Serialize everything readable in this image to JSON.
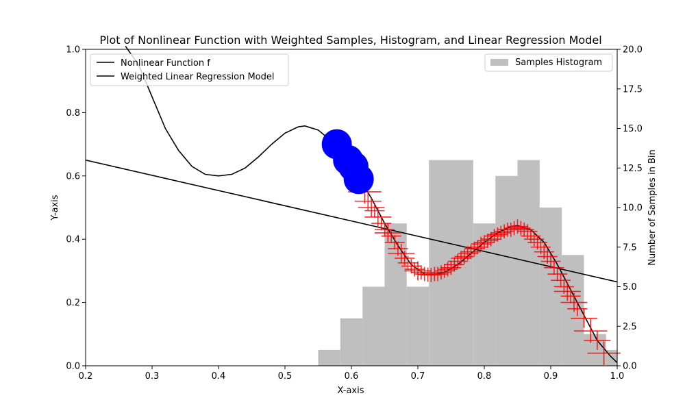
{
  "chart_data": {
    "type": "line",
    "title": "Plot of Nonlinear Function with Weighted Samples, Histogram, and Linear Regression Model",
    "xlabel": "X-axis",
    "ylabel": "Y-axis",
    "y2label": "Number of Samples in Bin",
    "xlim": [
      0.2,
      1.0
    ],
    "ylim": [
      0.0,
      1.0
    ],
    "y2lim": [
      0.0,
      20.0
    ],
    "x_ticks": [
      "0.2",
      "0.3",
      "0.4",
      "0.5",
      "0.6",
      "0.7",
      "0.8",
      "0.9",
      "1.0"
    ],
    "y_ticks": [
      "0.0",
      "0.2",
      "0.4",
      "0.6",
      "0.8",
      "1.0"
    ],
    "y2_ticks": [
      "0.0",
      "2.5",
      "5.0",
      "7.5",
      "10.0",
      "12.5",
      "15.0",
      "17.5",
      "20.0"
    ],
    "grid": false,
    "legend_left": {
      "placement": "top-left",
      "entries": [
        "Nonlinear Function f",
        "Weighted Linear Regression Model"
      ]
    },
    "legend_right": {
      "placement": "top-right",
      "entries": [
        "Samples Histogram"
      ]
    },
    "colors": {
      "function": "#000000",
      "regression": "#000000",
      "histogram": "#bfbfbf",
      "samples": "#ff0000",
      "highlight": "#0000ff"
    },
    "nonlinear_function": {
      "name": "Nonlinear Function f",
      "x": [
        0.26,
        0.28,
        0.3,
        0.32,
        0.34,
        0.36,
        0.38,
        0.4,
        0.42,
        0.44,
        0.46,
        0.48,
        0.5,
        0.52,
        0.53,
        0.55,
        0.57,
        0.59,
        0.61,
        0.63,
        0.65,
        0.67,
        0.69,
        0.71,
        0.72,
        0.74,
        0.76,
        0.78,
        0.8,
        0.82,
        0.84,
        0.85,
        0.87,
        0.89,
        0.91,
        0.93,
        0.95,
        0.97,
        0.99,
        1.0
      ],
      "y": [
        1.01,
        0.95,
        0.85,
        0.75,
        0.68,
        0.63,
        0.605,
        0.6,
        0.605,
        0.625,
        0.66,
        0.7,
        0.735,
        0.755,
        0.758,
        0.745,
        0.71,
        0.66,
        0.6,
        0.53,
        0.45,
        0.38,
        0.32,
        0.29,
        0.287,
        0.295,
        0.32,
        0.355,
        0.39,
        0.42,
        0.44,
        0.443,
        0.43,
        0.39,
        0.32,
        0.24,
        0.16,
        0.08,
        0.03,
        0.01
      ]
    },
    "regression_line": {
      "name": "Weighted Linear Regression Model",
      "x": [
        0.2,
        1.0
      ],
      "y": [
        0.65,
        0.265
      ]
    },
    "histogram": {
      "name": "Samples Histogram",
      "bin_edges": [
        0.55,
        0.5833,
        0.6167,
        0.65,
        0.6833,
        0.7167,
        0.75,
        0.7833,
        0.8167,
        0.85,
        0.8833,
        0.9167,
        0.95,
        0.9833,
        1.0
      ],
      "counts": [
        1,
        3,
        5,
        9,
        5,
        13,
        13,
        9,
        12,
        13,
        10,
        7,
        2,
        1
      ]
    },
    "highlighted_samples": {
      "x": [
        0.578,
        0.595,
        0.603,
        0.611
      ],
      "y": [
        0.7,
        0.65,
        0.63,
        0.59
      ]
    },
    "weighted_samples": {
      "x": [
        0.605,
        0.612,
        0.62,
        0.625,
        0.63,
        0.635,
        0.64,
        0.645,
        0.65,
        0.655,
        0.66,
        0.665,
        0.67,
        0.675,
        0.68,
        0.685,
        0.69,
        0.695,
        0.7,
        0.705,
        0.71,
        0.715,
        0.72,
        0.725,
        0.73,
        0.735,
        0.74,
        0.745,
        0.75,
        0.755,
        0.76,
        0.765,
        0.77,
        0.775,
        0.78,
        0.785,
        0.79,
        0.795,
        0.8,
        0.805,
        0.81,
        0.815,
        0.82,
        0.825,
        0.83,
        0.835,
        0.84,
        0.845,
        0.85,
        0.855,
        0.86,
        0.865,
        0.87,
        0.875,
        0.88,
        0.885,
        0.89,
        0.895,
        0.9,
        0.905,
        0.91,
        0.915,
        0.92,
        0.925,
        0.93,
        0.935,
        0.94,
        0.95,
        0.96,
        0.97,
        0.98
      ],
      "y": [
        0.61,
        0.58,
        0.55,
        0.52,
        0.5,
        0.49,
        0.47,
        0.45,
        0.43,
        0.42,
        0.41,
        0.39,
        0.37,
        0.355,
        0.34,
        0.325,
        0.315,
        0.305,
        0.3,
        0.295,
        0.29,
        0.288,
        0.287,
        0.29,
        0.29,
        0.295,
        0.3,
        0.305,
        0.31,
        0.32,
        0.33,
        0.34,
        0.345,
        0.355,
        0.36,
        0.37,
        0.375,
        0.385,
        0.39,
        0.395,
        0.4,
        0.41,
        0.415,
        0.42,
        0.425,
        0.43,
        0.43,
        0.435,
        0.44,
        0.435,
        0.43,
        0.425,
        0.41,
        0.4,
        0.39,
        0.375,
        0.36,
        0.345,
        0.33,
        0.31,
        0.29,
        0.27,
        0.25,
        0.235,
        0.22,
        0.2,
        0.18,
        0.15,
        0.11,
        0.08,
        0.04
      ],
      "size": [
        0.02,
        0.02,
        0.025,
        0.02,
        0.02,
        0.015,
        0.02,
        0.015,
        0.015,
        0.02,
        0.015,
        0.015,
        0.015,
        0.02,
        0.015,
        0.015,
        0.015,
        0.015,
        0.02,
        0.015,
        0.015,
        0.015,
        0.015,
        0.015,
        0.015,
        0.015,
        0.015,
        0.015,
        0.015,
        0.015,
        0.015,
        0.015,
        0.015,
        0.015,
        0.015,
        0.015,
        0.015,
        0.015,
        0.015,
        0.015,
        0.015,
        0.015,
        0.015,
        0.015,
        0.015,
        0.015,
        0.015,
        0.015,
        0.015,
        0.015,
        0.015,
        0.015,
        0.015,
        0.015,
        0.015,
        0.015,
        0.015,
        0.015,
        0.015,
        0.015,
        0.015,
        0.015,
        0.015,
        0.02,
        0.015,
        0.02,
        0.015,
        0.02,
        0.025,
        0.02,
        0.025
      ]
    }
  }
}
